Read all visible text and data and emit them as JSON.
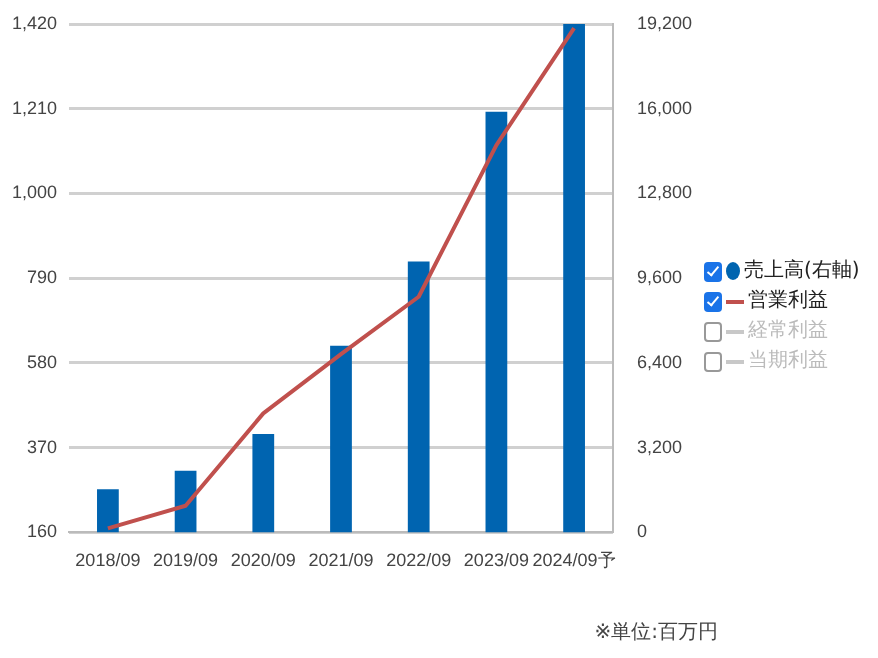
{
  "chart_data": {
    "type": "bar",
    "categories": [
      "2018/09",
      "2019/09",
      "2020/09",
      "2021/09",
      "2022/09",
      "2023/09",
      "2024/09予"
    ],
    "series": [
      {
        "name": "売上高(右軸)",
        "axis": "y2",
        "color": "#0064b0",
        "values": [
          1630,
          2330,
          3720,
          7050,
          10230,
          15890,
          19200
        ]
      },
      {
        "name": "営業利益",
        "type": "line",
        "color": "#c0504d",
        "values": [
          170,
          226,
          455,
          602,
          744,
          1120,
          1410
        ]
      },
      {
        "name": "経常利益",
        "type": "line",
        "color": "#c8c8c8",
        "values": [
          null,
          null,
          null,
          null,
          null,
          null,
          null
        ]
      },
      {
        "name": "当期利益",
        "type": "line",
        "color": "#c8c8c8",
        "values": [
          null,
          null,
          null,
          null,
          null,
          null,
          null
        ]
      }
    ],
    "ylim": [
      160,
      1420
    ],
    "yticks": [
      {
        "value": 160,
        "label": "160"
      },
      {
        "value": 370,
        "label": "370"
      },
      {
        "value": 580,
        "label": "580"
      },
      {
        "value": 790,
        "label": "790"
      },
      {
        "value": 1000,
        "label": "1,000"
      },
      {
        "value": 1210,
        "label": "1,210"
      },
      {
        "value": 1420,
        "label": "1,420"
      }
    ],
    "y2lim": [
      0,
      19200
    ],
    "y2ticks": [
      {
        "value": 0,
        "label": "0"
      },
      {
        "value": 3200,
        "label": "3,200"
      },
      {
        "value": 6400,
        "label": "6,400"
      },
      {
        "value": 9600,
        "label": "9,600"
      },
      {
        "value": 12800,
        "label": "12,800"
      },
      {
        "value": 16000,
        "label": "16,000"
      },
      {
        "value": 19200,
        "label": "19,200"
      }
    ],
    "grid": "y",
    "legend": "right",
    "marker": "none",
    "annotations": [
      "※単位:百万円"
    ]
  }
}
